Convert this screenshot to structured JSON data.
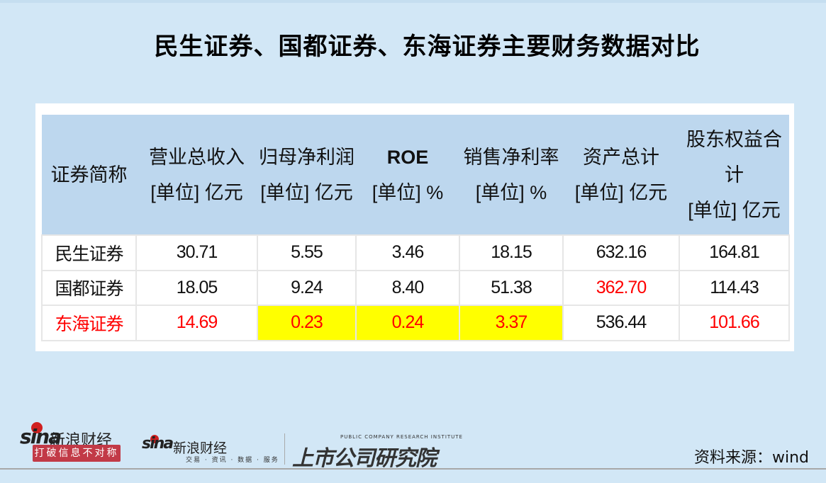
{
  "title": "民生证券、国都证券、东海证券主要财务数据对比",
  "table": {
    "headers": [
      {
        "line1": "证券简称",
        "line2": ""
      },
      {
        "line1": "营业总收入",
        "line2": "[单位] 亿元"
      },
      {
        "line1": "归母净利润",
        "line2": "[单位] 亿元"
      },
      {
        "line1": "ROE",
        "line2": "[单位] %"
      },
      {
        "line1": "销售净利率",
        "line2": "[单位] %"
      },
      {
        "line1": "资产总计",
        "line2": "[单位] 亿元"
      },
      {
        "line1": "股东权益合计",
        "line2": "[单位] 亿元"
      }
    ],
    "rows": [
      [
        "民生证券",
        "30.71",
        "5.55",
        "3.46",
        "18.15",
        "632.16",
        "164.81"
      ],
      [
        "国都证券",
        "18.05",
        "9.24",
        "8.40",
        "51.38",
        "362.70",
        "114.43"
      ],
      [
        "东海证券",
        "14.69",
        "0.23",
        "0.24",
        "3.37",
        "536.44",
        "101.66"
      ]
    ],
    "highlight_color": "#ffff00",
    "emphasis_color": "#ff0000"
  },
  "logos": {
    "sina_brand": "sina",
    "sina_cn": "新浪财经",
    "slogan": "打破信息不对称",
    "sina_sub": "交易 · 资讯 · 数据 · 服务",
    "institute": "上市公司研究院",
    "institute_en": "PUBLIC COMPANY RESEARCH INSTITUTE"
  },
  "source": "资料来源：wind"
}
